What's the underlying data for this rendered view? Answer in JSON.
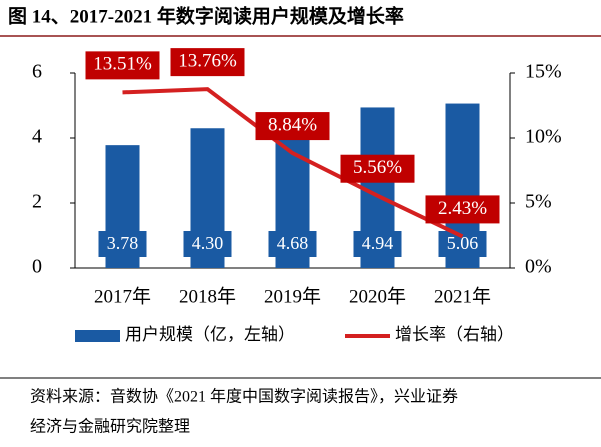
{
  "chart_data": {
    "type": "bar-line",
    "title": "图 14、2017-2021 年数字阅读用户规模及增长率",
    "categories": [
      "2017年",
      "2018年",
      "2019年",
      "2020年",
      "2021年"
    ],
    "series": [
      {
        "name": "用户规模（亿，左轴）",
        "type": "bar",
        "color": "#1a5aa3",
        "values": [
          3.78,
          4.3,
          4.68,
          4.94,
          5.06
        ],
        "value_labels": [
          "3.78",
          "4.30",
          "4.68",
          "4.94",
          "5.06"
        ]
      },
      {
        "name": "增长率（右轴）",
        "type": "line",
        "axis": "y2",
        "color": "#d42020",
        "values": [
          13.51,
          13.76,
          8.84,
          5.56,
          2.43
        ],
        "value_labels": [
          "13.51%",
          "13.76%",
          "8.84%",
          "5.56%",
          "2.43%"
        ]
      }
    ],
    "ylim": [
      0,
      6
    ],
    "yticks": [
      0,
      2,
      4,
      6
    ],
    "y2lim": [
      0,
      15
    ],
    "y2ticks": [
      {
        "value": 0,
        "label": "0%"
      },
      {
        "value": 5,
        "label": "5%"
      },
      {
        "value": 10,
        "label": "10%"
      },
      {
        "value": 15,
        "label": "15%"
      }
    ],
    "source": [
      "资料来源：音数协《2021 年度中国数字阅读报告》，兴业证券",
      "经济与金融研究院整理"
    ]
  }
}
